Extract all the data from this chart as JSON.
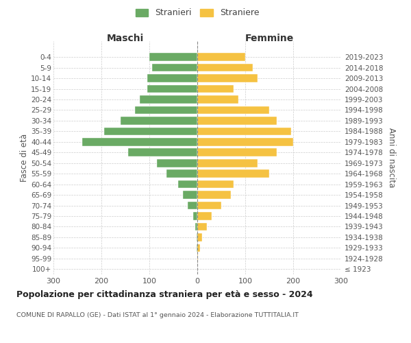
{
  "age_groups": [
    "100+",
    "95-99",
    "90-94",
    "85-89",
    "80-84",
    "75-79",
    "70-74",
    "65-69",
    "60-64",
    "55-59",
    "50-54",
    "45-49",
    "40-44",
    "35-39",
    "30-34",
    "25-29",
    "20-24",
    "15-19",
    "10-14",
    "5-9",
    "0-4"
  ],
  "birth_years": [
    "≤ 1923",
    "1924-1928",
    "1929-1933",
    "1934-1938",
    "1939-1943",
    "1944-1948",
    "1949-1953",
    "1954-1958",
    "1959-1963",
    "1964-1968",
    "1969-1973",
    "1974-1978",
    "1979-1983",
    "1984-1988",
    "1989-1993",
    "1994-1998",
    "1999-2003",
    "2004-2008",
    "2009-2013",
    "2014-2018",
    "2019-2023"
  ],
  "males": [
    0,
    0,
    1,
    2,
    5,
    8,
    20,
    30,
    40,
    65,
    85,
    145,
    240,
    195,
    160,
    130,
    120,
    105,
    105,
    95,
    100
  ],
  "females": [
    0,
    2,
    5,
    10,
    20,
    30,
    50,
    70,
    75,
    150,
    125,
    165,
    200,
    195,
    165,
    150,
    85,
    75,
    125,
    115,
    100
  ],
  "male_color": "#6aaa64",
  "female_color": "#f5c242",
  "background_color": "#ffffff",
  "grid_color": "#cccccc",
  "title_main": "Popolazione per cittadinanza straniera per età e sesso - 2024",
  "title_sub": "COMUNE DI RAPALLO (GE) - Dati ISTAT al 1° gennaio 2024 - Elaborazione TUTTITALIA.IT",
  "legend_male": "Stranieri",
  "legend_female": "Straniere",
  "xlabel_left": "Maschi",
  "xlabel_right": "Femmine",
  "ylabel_left": "Fasce di età",
  "ylabel_right": "Anni di nascita",
  "xlim": 300
}
